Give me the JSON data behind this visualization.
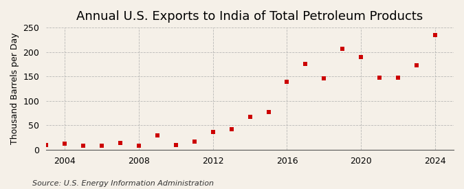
{
  "title": "Annual U.S. Exports to India of Total Petroleum Products",
  "ylabel": "Thousand Barrels per Day",
  "source": "Source: U.S. Energy Information Administration",
  "background_color": "#f5f0e8",
  "marker_color": "#cc0000",
  "grid_color": "#aaaaaa",
  "years": [
    2003,
    2004,
    2005,
    2006,
    2007,
    2008,
    2009,
    2010,
    2011,
    2012,
    2013,
    2014,
    2015,
    2016,
    2017,
    2018,
    2019,
    2020,
    2021,
    2022,
    2023,
    2024
  ],
  "values": [
    10,
    12,
    8,
    9,
    14,
    8,
    30,
    10,
    17,
    37,
    42,
    68,
    77,
    139,
    175,
    146,
    207,
    190,
    147,
    147,
    173,
    235
  ],
  "ylim": [
    0,
    250
  ],
  "xlim": [
    2003,
    2025
  ],
  "xticks": [
    2004,
    2008,
    2012,
    2016,
    2020,
    2024
  ],
  "yticks": [
    0,
    50,
    100,
    150,
    200,
    250
  ],
  "title_fontsize": 13,
  "label_fontsize": 9,
  "tick_fontsize": 9,
  "source_fontsize": 8
}
